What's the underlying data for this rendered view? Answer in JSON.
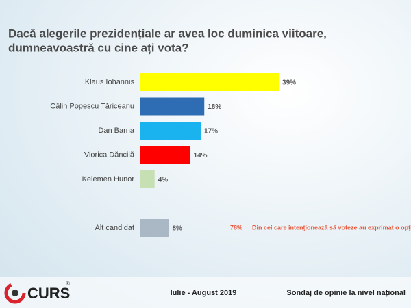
{
  "chart_data": {
    "type": "bar",
    "orientation": "horizontal",
    "title": [
      "Dacă alegerile prezidențiale ar avea loc duminica viitoare,",
      "dumneavoastră cu cine ați vota?"
    ],
    "categories": [
      "Klaus Iohannis",
      "Călin Popescu Tăriceanu",
      "Dan Barna",
      "Viorica Dăncilă",
      "Kelemen Hunor",
      null,
      "Alt candidat"
    ],
    "values": [
      39,
      18,
      17,
      14,
      4,
      null,
      8
    ],
    "value_labels": [
      "39%",
      "18%",
      "17%",
      "14%",
      "4%",
      null,
      "8%"
    ],
    "colors": [
      "#ffff00",
      "#2e6db4",
      "#1bb3ef",
      "#ff0000",
      "#c6e0b4",
      null,
      "#aab8c6"
    ],
    "annotation": {
      "value": 78,
      "label": "78%",
      "text": "Din cei care intenționează să voteze au exprimat o opțiune",
      "color": "#e8573a"
    },
    "footer": {
      "logo": "CURS",
      "logo_mark": "®",
      "period": "Iulie - August 2019",
      "note": "Sondaj de opinie la nivel național"
    }
  }
}
